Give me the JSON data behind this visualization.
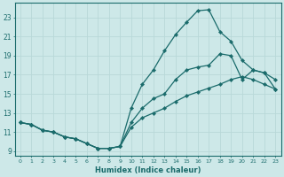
{
  "xlabel": "Humidex (Indice chaleur)",
  "ylabel": "",
  "background_color": "#cde8e8",
  "grid_color": "#b8d8d8",
  "line_color": "#1a6b6b",
  "xlim": [
    -0.5,
    23.5
  ],
  "ylim": [
    8.5,
    24.5
  ],
  "xticks": [
    0,
    1,
    2,
    3,
    4,
    5,
    6,
    7,
    8,
    9,
    10,
    11,
    12,
    13,
    14,
    15,
    16,
    17,
    18,
    19,
    20,
    21,
    22,
    23
  ],
  "yticks": [
    9,
    11,
    13,
    15,
    17,
    19,
    21,
    23
  ],
  "curve_high_x": [
    0,
    1,
    2,
    3,
    4,
    5,
    6,
    7,
    8,
    9,
    10,
    11,
    12,
    13,
    14,
    15,
    16,
    17,
    18,
    19,
    20,
    21,
    22,
    23
  ],
  "curve_high_y": [
    12.0,
    11.8,
    11.2,
    11.0,
    10.5,
    10.3,
    9.8,
    9.3,
    9.3,
    9.5,
    13.5,
    16.0,
    17.5,
    19.5,
    21.2,
    22.5,
    23.7,
    23.8,
    21.5,
    20.5,
    18.5,
    17.5,
    17.2,
    16.5
  ],
  "curve_mid_x": [
    0,
    1,
    2,
    3,
    4,
    5,
    6,
    7,
    8,
    9,
    10,
    11,
    12,
    13,
    14,
    15,
    16,
    17,
    18,
    19,
    20,
    21,
    22,
    23
  ],
  "curve_mid_y": [
    12.0,
    11.8,
    11.2,
    11.0,
    10.5,
    10.3,
    9.8,
    9.3,
    9.3,
    9.5,
    12.0,
    13.5,
    14.5,
    15.0,
    16.5,
    17.5,
    17.8,
    18.0,
    19.2,
    19.0,
    16.5,
    17.5,
    17.2,
    15.5
  ],
  "curve_low_x": [
    0,
    1,
    2,
    3,
    4,
    5,
    6,
    7,
    8,
    9,
    10,
    11,
    12,
    13,
    14,
    15,
    16,
    17,
    18,
    19,
    20,
    21,
    22,
    23
  ],
  "curve_low_y": [
    12.0,
    11.8,
    11.2,
    11.0,
    10.5,
    10.3,
    9.8,
    9.3,
    9.3,
    9.5,
    11.5,
    12.5,
    13.0,
    13.5,
    14.2,
    14.8,
    15.2,
    15.6,
    16.0,
    16.5,
    16.8,
    16.5,
    16.0,
    15.5
  ]
}
